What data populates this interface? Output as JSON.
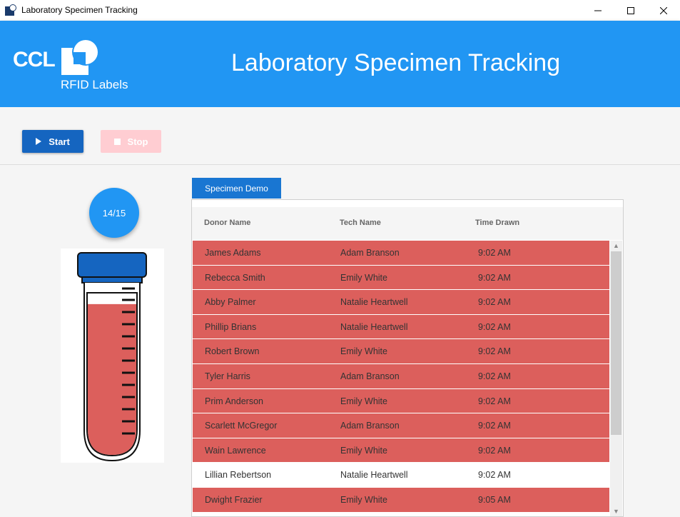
{
  "window": {
    "title": "Laboratory Specimen Tracking"
  },
  "header": {
    "logo_text": "CCL",
    "logo_sub": "RFID Labels",
    "title": "Laboratory Specimen Tracking",
    "color": "#2196f3"
  },
  "toolbar": {
    "start_label": "Start",
    "stop_label": "Stop"
  },
  "counter": {
    "text": "14/15"
  },
  "tube": {
    "fill_level": 0.93,
    "fill_color": "#dc5f5c",
    "cap_color": "#1565c0"
  },
  "tab": {
    "label": "Specimen Demo"
  },
  "grid": {
    "columns": [
      "Donor Name",
      "Tech Name",
      "Time Drawn"
    ],
    "rows": [
      {
        "donor": "James Adams",
        "tech": "Adam Branson",
        "time": "9:02 AM",
        "status": "red"
      },
      {
        "donor": "Rebecca Smith",
        "tech": "Emily White",
        "time": "9:02 AM",
        "status": "red"
      },
      {
        "donor": "Abby Palmer",
        "tech": "Natalie Heartwell",
        "time": "9:02 AM",
        "status": "red"
      },
      {
        "donor": "Phillip Brians",
        "tech": "Natalie Heartwell",
        "time": "9:02 AM",
        "status": "red"
      },
      {
        "donor": "Robert Brown",
        "tech": "Emily White",
        "time": "9:02 AM",
        "status": "red"
      },
      {
        "donor": "Tyler Harris",
        "tech": "Adam Branson",
        "time": "9:02 AM",
        "status": "red"
      },
      {
        "donor": "Prim Anderson",
        "tech": "Emily White",
        "time": "9:02 AM",
        "status": "red"
      },
      {
        "donor": "Scarlett McGregor",
        "tech": "Adam Branson",
        "time": "9:02 AM",
        "status": "red"
      },
      {
        "donor": "Wain Lawrence",
        "tech": "Emily White",
        "time": "9:02 AM",
        "status": "red"
      },
      {
        "donor": "Lillian Rebertson",
        "tech": "Natalie Heartwell",
        "time": "9:02 AM",
        "status": "white"
      },
      {
        "donor": "Dwight Frazier",
        "tech": "Emily White",
        "time": "9:05 AM",
        "status": "red"
      }
    ]
  }
}
